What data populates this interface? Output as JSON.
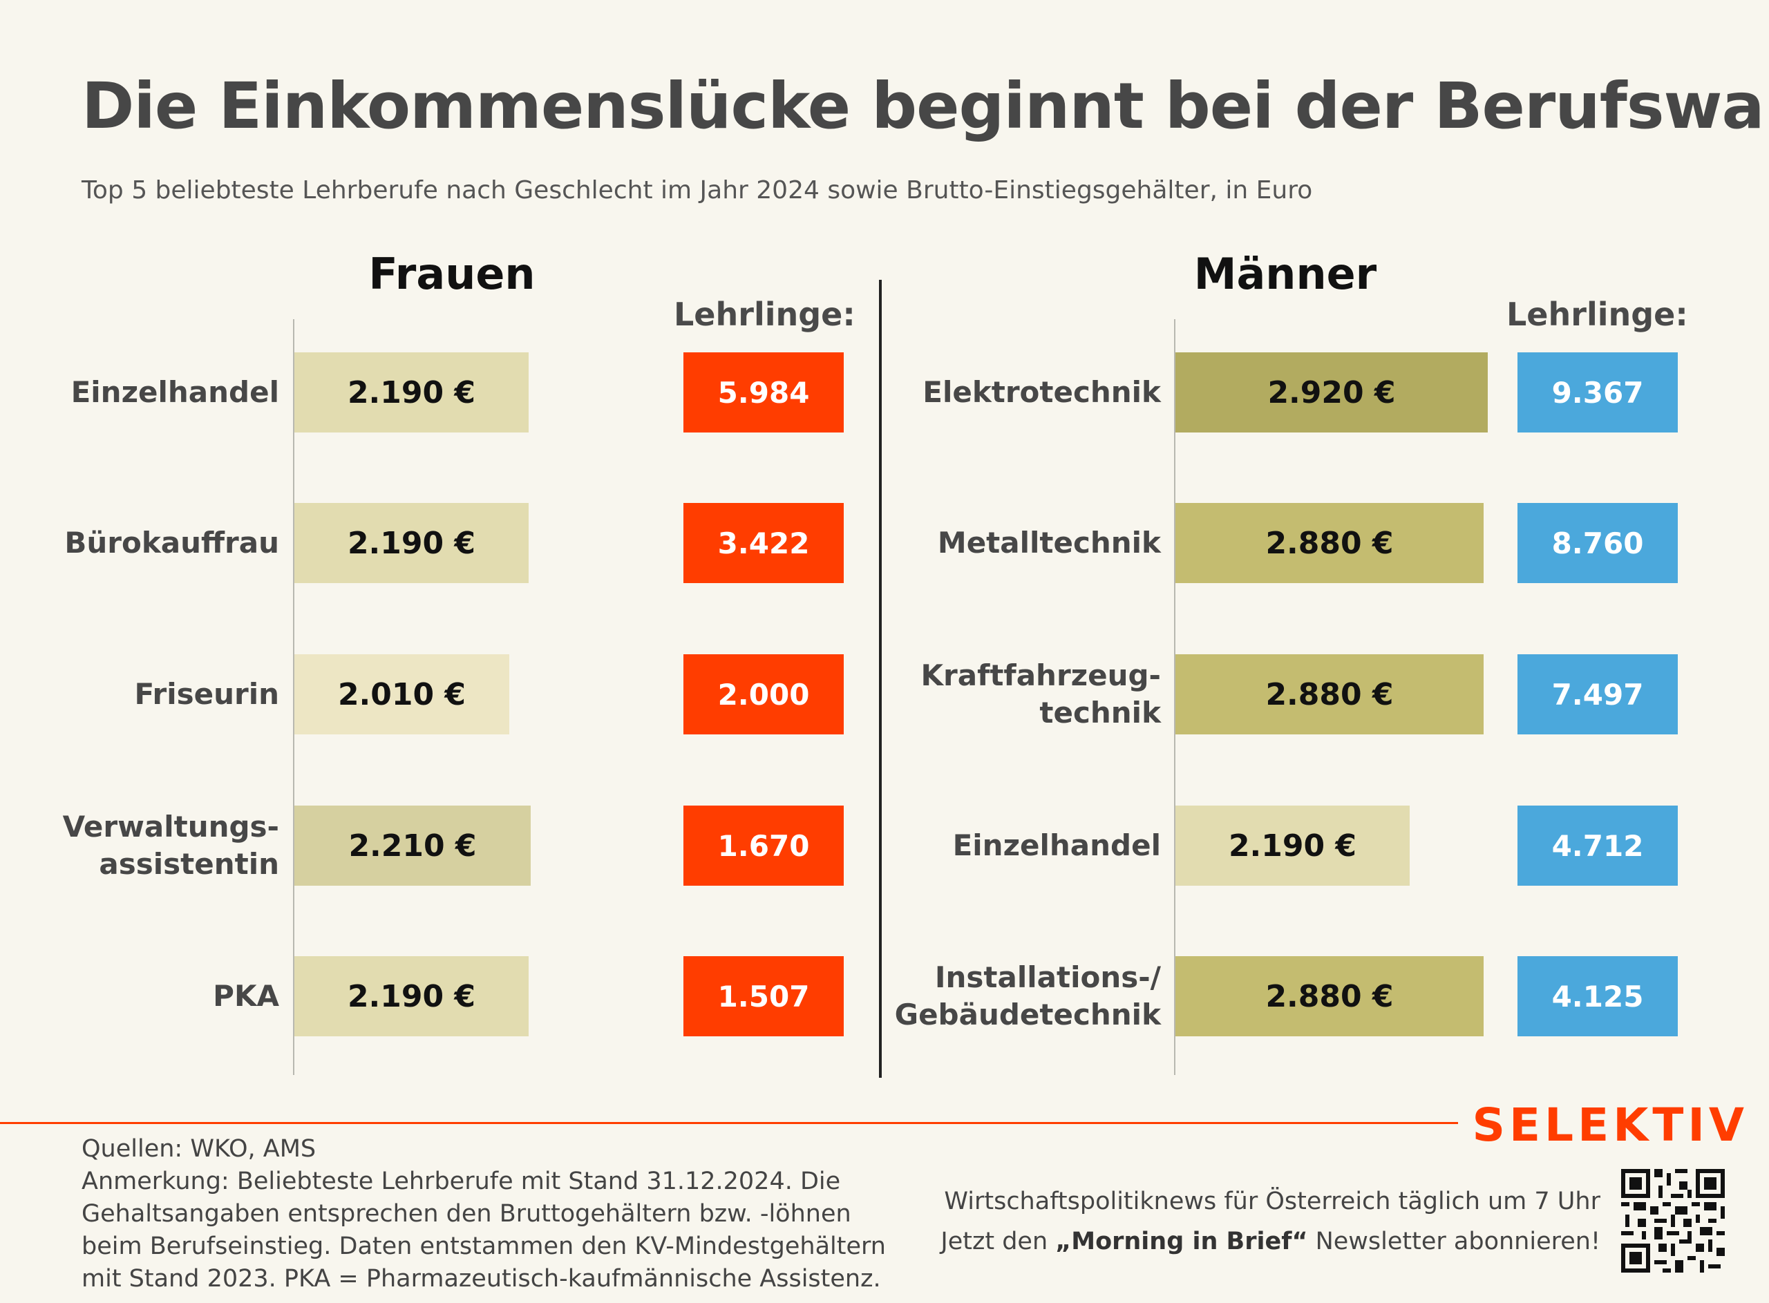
{
  "title": "Die Einkommenslücke beginnt bei der Berufswahl",
  "subtitle": "Top 5 beliebteste Lehrberufe nach Geschlecht im Jahr 2024 sowie Brutto-Einstiegsgehälter, in Euro",
  "chart_data": {
    "type": "bar",
    "value_unit": "€",
    "count_header": "Lehrlinge:",
    "panels": [
      {
        "name": "Frauen",
        "count_color": "#ff3d00",
        "categories": [
          "Einzelhandel",
          "Bürokauffrau",
          "Friseurin",
          "Verwaltungs-\nassistentin",
          "PKA"
        ],
        "salary_values": [
          2190,
          2190,
          2010,
          2210,
          2190
        ],
        "salary_labels": [
          "2.190 €",
          "2.190 €",
          "2.010 €",
          "2.210 €",
          "2.190 €"
        ],
        "apprentice_counts": [
          5984,
          3422,
          2000,
          1670,
          1507
        ],
        "apprentice_labels": [
          "5.984",
          "3.422",
          "2.000",
          "1.670",
          "1.507"
        ],
        "bar_colors": [
          "#e2dcb0",
          "#e2dcb0",
          "#ede6c4",
          "#d6d0a0",
          "#e2dcb0"
        ]
      },
      {
        "name": "Männer",
        "count_color": "#4ba8dc",
        "categories": [
          "Elektrotechnik",
          "Metalltechnik",
          "Kraftfahrzeug-\ntechnik",
          "Einzelhandel",
          "Installations-/\nGebäudetechnik"
        ],
        "salary_values": [
          2920,
          2880,
          2880,
          2190,
          2880
        ],
        "salary_labels": [
          "2.920 €",
          "2.880 €",
          "2.880 €",
          "2.190 €",
          "2.880 €"
        ],
        "apprentice_counts": [
          9367,
          8760,
          7497,
          4712,
          4125
        ],
        "apprentice_labels": [
          "9.367",
          "8.760",
          "7.497",
          "4.712",
          "4.125"
        ],
        "bar_colors": [
          "#b2ab60",
          "#c4bc70",
          "#c4bc70",
          "#e2dcb0",
          "#c4bc70"
        ]
      }
    ]
  },
  "footer": {
    "brand": "SELEKTIV",
    "notes": [
      "Quellen: WKO, AMS",
      "Anmerkung: Beliebteste Lehrberufe mit Stand 31.12.2024. Die",
      "Gehaltsangaben entsprechen den Bruttogehältern bzw. -löhnen",
      "beim Berufseinstieg. Daten entstammen den KV-Mindestgehältern",
      "mit Stand 2023. PKA = Pharmazeutisch-kaufmännische Assistenz."
    ],
    "promo_line1": "Wirtschaftspolitiknews für Österreich täglich um 7 Uhr",
    "promo_line2_pre": "Jetzt den ",
    "promo_line2_bold": "„Morning in Brief“",
    "promo_line2_post": " Newsletter abonnieren!",
    "qr_icon": "qr-code-icon"
  }
}
